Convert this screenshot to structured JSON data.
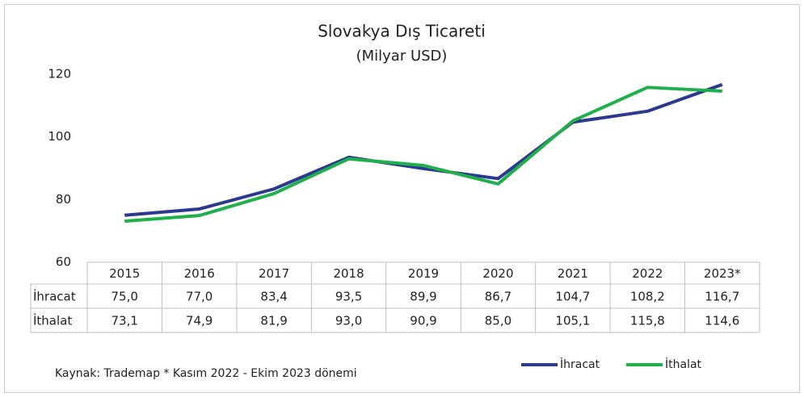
{
  "chart_data": {
    "type": "line",
    "title": "Slovakya Dış Ticareti",
    "subtitle": "(Milyar USD)",
    "categories": [
      "2015",
      "2016",
      "2017",
      "2018",
      "2019",
      "2020",
      "2021",
      "2022",
      "2023*"
    ],
    "series": [
      {
        "name": "İhracat",
        "color": "#2b3990",
        "values": [
          75.0,
          77.0,
          83.4,
          93.5,
          89.9,
          86.7,
          104.7,
          108.2,
          116.7
        ],
        "value_labels": [
          "75,0",
          "77,0",
          "83,4",
          "93,5",
          "89,9",
          "86,7",
          "104,7",
          "108,2",
          "116,7"
        ]
      },
      {
        "name": "İthalat",
        "color": "#1fb04c",
        "values": [
          73.1,
          74.9,
          81.9,
          93.0,
          90.9,
          85.0,
          105.1,
          115.8,
          114.6
        ],
        "value_labels": [
          "73,1",
          "74,9",
          "81,9",
          "93,0",
          "90,9",
          "85,0",
          "105,1",
          "115,8",
          "114,6"
        ]
      }
    ],
    "ylim": [
      60,
      120
    ],
    "yticks": [
      60,
      80,
      100,
      120
    ],
    "grid": false,
    "note": "Kaynak: Trademap * Kasım 2022 - Ekim 2023 dönemi",
    "legend": "bottom-right"
  }
}
